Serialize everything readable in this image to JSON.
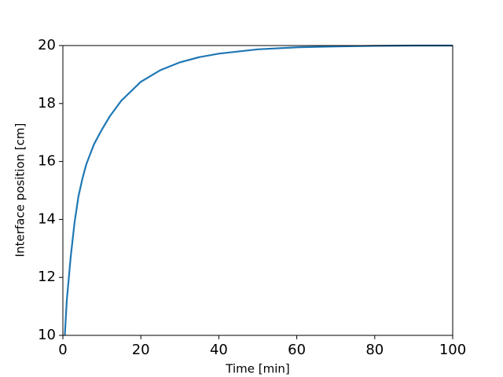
{
  "chart_data": {
    "type": "line",
    "xlabel": "Time [min]",
    "ylabel": "Interface position [cm]",
    "x": [
      0.5,
      1,
      2,
      3,
      4,
      5,
      6,
      8,
      10,
      12,
      15,
      20,
      25,
      30,
      35,
      40,
      50,
      60,
      70,
      80,
      90,
      100
    ],
    "series": [
      {
        "name": "Interface position",
        "color": "#1f77b4",
        "values": [
          10,
          11.2,
          12.7,
          13.9,
          14.8,
          15.4,
          15.9,
          16.6,
          17.1,
          17.55,
          18.1,
          18.75,
          19.15,
          19.42,
          19.6,
          19.72,
          19.87,
          19.94,
          19.97,
          19.99,
          20,
          20
        ]
      }
    ],
    "xlim": [
      0,
      100
    ],
    "ylim": [
      10,
      20
    ],
    "xticks": [
      0,
      20,
      40,
      60,
      80,
      100
    ],
    "yticks": [
      10,
      12,
      14,
      16,
      18,
      20
    ]
  }
}
